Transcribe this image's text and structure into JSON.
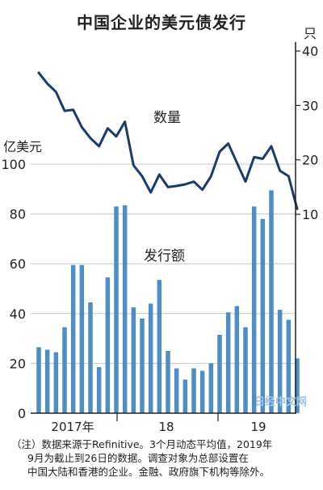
{
  "title": "中国企业的美元债发行",
  "chart_data": {
    "type": "bar+line",
    "left_axis": {
      "label": "亿美元",
      "ticks": [
        0,
        20,
        40,
        60,
        80,
        100
      ],
      "ylim": [
        0,
        100
      ]
    },
    "right_axis": {
      "label": "只",
      "ticks": [
        10,
        20,
        30,
        40
      ],
      "ylim": [
        5,
        40
      ]
    },
    "x_labels": [
      "2017年",
      "18",
      "19"
    ],
    "bar_series": {
      "name": "发行额",
      "color": "#4d8dc6",
      "values": [
        26.5,
        25.5,
        24.5,
        34.5,
        59.5,
        59.5,
        44.5,
        18.5,
        54.5,
        83,
        83.5,
        42.5,
        38,
        44,
        53.5,
        25,
        18,
        13.5,
        18,
        17,
        20,
        31.5,
        40.5,
        43,
        34.5,
        83,
        78,
        89.5,
        41.5,
        37.5,
        22
      ]
    },
    "line_series": {
      "name": "数量",
      "color": "#1b3a70",
      "values": [
        36,
        34,
        32.5,
        29,
        29.2,
        26,
        24,
        22.5,
        25.8,
        24.3,
        27,
        19,
        17,
        14,
        17.3,
        15,
        15.2,
        15.5,
        16,
        14.5,
        17,
        21.5,
        23,
        19.5,
        16,
        20.5,
        20.2,
        22.5,
        18,
        17,
        11
      ]
    }
  },
  "note": [
    "（注）数据来源于Refinitive。3个月动态平均值，2019年",
    "9月为截止到26日的数据。调查对象为总部设置在",
    "中国大陆和香港的企业。金融、政府旗下机构等除外。"
  ],
  "watermark": "日经中文网"
}
